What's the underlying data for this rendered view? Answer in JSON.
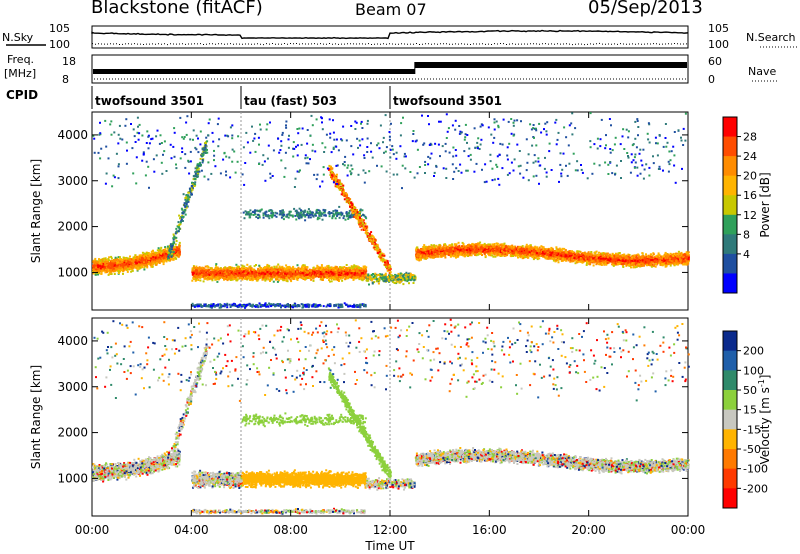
{
  "header": {
    "title": "Blackstone (fitACF)",
    "beam": "Beam 07",
    "date": "05/Sep/2013"
  },
  "top_panels": {
    "nsky_label": "N.Sky",
    "nsky_ticks": [
      "10^5",
      "10^0"
    ],
    "nsearch_label": "N.Search",
    "freq_label": "Freq.",
    "freq_unit": "[MHz]",
    "freq_ticks": [
      "18",
      "8"
    ],
    "nave_label": "Nave",
    "nave_ticks": [
      "60",
      "0"
    ],
    "cpid_label": "CPID",
    "cpid_segments": [
      {
        "label": "twofsound 3501",
        "start_hour": 0,
        "end_hour": 6
      },
      {
        "label": "tau (fast) 503",
        "start_hour": 6,
        "end_hour": 12
      },
      {
        "label": "twofsound 3501",
        "start_hour": 12,
        "end_hour": 24
      }
    ]
  },
  "chart_data": [
    {
      "type": "heatmap",
      "name": "power",
      "ylabel": "Slant Range [km]",
      "xlim": [
        0,
        24
      ],
      "ylim": [
        180,
        4500
      ],
      "yticks": [
        "1000",
        "2000",
        "3000",
        "4000"
      ],
      "colorbar_label": "Power [dB]",
      "colorbar_ticks": [
        "28",
        "24",
        "20",
        "16",
        "12",
        "8",
        "4"
      ],
      "colorbar_colors": [
        "#ff0000",
        "#ff4d00",
        "#ff8c00",
        "#ffb400",
        "#c8c800",
        "#2fa05a",
        "#2f7a7a",
        "#1f4fa0",
        "#0000ff"
      ],
      "scatter_regions": [
        {
          "x": [
            0,
            3.5
          ],
          "y_start": 1050,
          "y_end": 1700,
          "description": "dense echoes"
        },
        {
          "x": [
            4,
            11
          ],
          "y_start": 800,
          "y_end": 1350,
          "description": "dense echoes"
        },
        {
          "x": [
            13,
            24
          ],
          "y_start": 1100,
          "y_end": 1700,
          "description": "dense echoes"
        }
      ]
    },
    {
      "type": "heatmap",
      "name": "velocity",
      "ylabel": "Slant Range [km]",
      "xlabel": "Time UT",
      "xlim": [
        0,
        24
      ],
      "ylim": [
        180,
        4500
      ],
      "yticks": [
        "1000",
        "2000",
        "3000",
        "4000"
      ],
      "xticks": [
        "00:00",
        "04:00",
        "08:00",
        "12:00",
        "16:00",
        "20:00",
        "00:00"
      ],
      "colorbar_label": "Velocity [m s",
      "colorbar_label_sup": "-1",
      "colorbar_label_end": "]",
      "colorbar_ticks": [
        "200",
        "100",
        "50",
        "15",
        "-15",
        "-50",
        "-100",
        "-200"
      ],
      "colorbar_colors": [
        "#0a2a8c",
        "#1f5faa",
        "#2f8a6a",
        "#8cd03c",
        "#c8c8c0",
        "#ffb400",
        "#ff7a00",
        "#ff3a00",
        "#ff0000"
      ]
    }
  ]
}
